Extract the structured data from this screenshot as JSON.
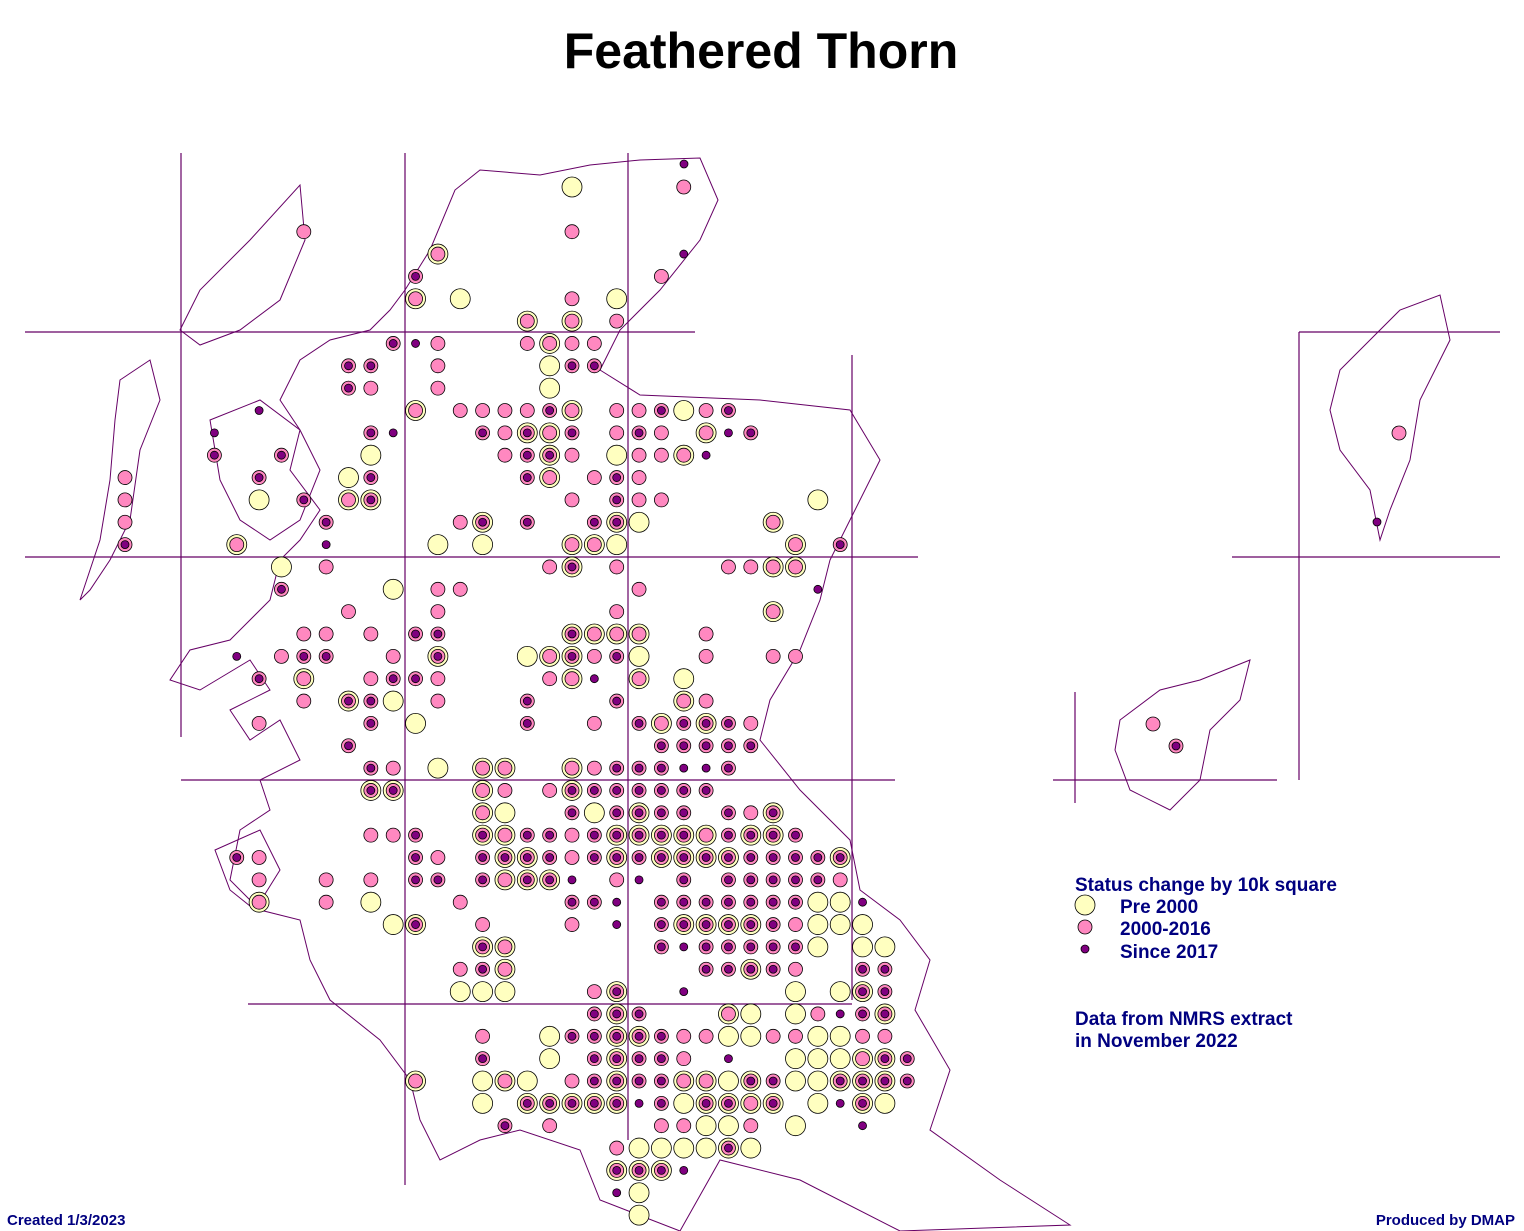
{
  "title": "Feathered Thorn",
  "legend": {
    "title": "Status change by 10k square",
    "items": [
      "Pre 2000",
      "2000-2016",
      "Since 2017"
    ]
  },
  "note": [
    "Data from NMRS extract",
    "in November 2022"
  ],
  "footer": {
    "created": "Created 1/3/2023",
    "producer": "Produced by DMAP"
  }
}
